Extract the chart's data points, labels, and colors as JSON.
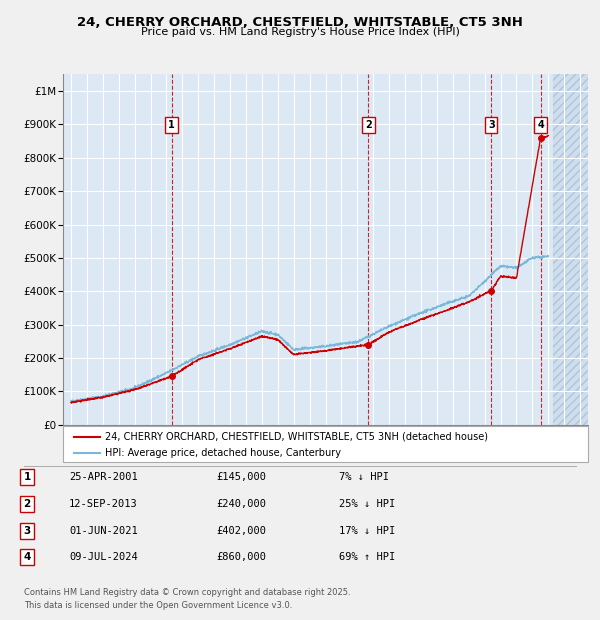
{
  "title": "24, CHERRY ORCHARD, CHESTFIELD, WHITSTABLE, CT5 3NH",
  "subtitle": "Price paid vs. HM Land Registry's House Price Index (HPI)",
  "ylabel_ticks": [
    "£0",
    "£100K",
    "£200K",
    "£300K",
    "£400K",
    "£500K",
    "£600K",
    "£700K",
    "£800K",
    "£900K",
    "£1M"
  ],
  "ytick_values": [
    0,
    100000,
    200000,
    300000,
    400000,
    500000,
    600000,
    700000,
    800000,
    900000,
    1000000
  ],
  "xmin": 1994.5,
  "xmax": 2027.5,
  "ymin": 0,
  "ymax": 1050000,
  "fig_bg_color": "#f0f0f0",
  "plot_bg_color": "#dce9f5",
  "grid_color": "#ffffff",
  "hpi_color": "#7ab8d9",
  "price_color": "#cc0000",
  "legend_label_house": "24, CHERRY ORCHARD, CHESTFIELD, WHITSTABLE, CT5 3NH (detached house)",
  "legend_label_hpi": "HPI: Average price, detached house, Canterbury",
  "transactions": [
    {
      "id": 1,
      "date_str": "25-APR-2001",
      "price": 145000,
      "pct": "7%",
      "dir": "↓",
      "x": 2001.32
    },
    {
      "id": 2,
      "date_str": "12-SEP-2013",
      "price": 240000,
      "pct": "25%",
      "dir": "↓",
      "x": 2013.7
    },
    {
      "id": 3,
      "date_str": "01-JUN-2021",
      "price": 402000,
      "pct": "17%",
      "dir": "↓",
      "x": 2021.42
    },
    {
      "id": 4,
      "date_str": "09-JUL-2024",
      "price": 860000,
      "pct": "69%",
      "dir": "↑",
      "x": 2024.52
    }
  ],
  "footer_line1": "Contains HM Land Registry data © Crown copyright and database right 2025.",
  "footer_line2": "This data is licensed under the Open Government Licence v3.0.",
  "future_xmin": 2025.3,
  "future_xmax": 2027.5,
  "hpi_anchors_x": [
    1995,
    1997,
    1999,
    2001,
    2003,
    2005,
    2007,
    2008,
    2009,
    2011,
    2013,
    2015,
    2017,
    2019,
    2020,
    2021,
    2022,
    2023,
    2024,
    2025
  ],
  "hpi_anchors_y": [
    70000,
    85000,
    110000,
    155000,
    205000,
    240000,
    280000,
    270000,
    225000,
    235000,
    248000,
    295000,
    335000,
    370000,
    385000,
    430000,
    475000,
    470000,
    500000,
    505000
  ],
  "price_anchors_x": [
    1995,
    1997,
    1999,
    2001.32,
    2003,
    2005,
    2007,
    2008,
    2009,
    2011,
    2013.7,
    2015,
    2017,
    2019,
    2020,
    2021.42,
    2022,
    2023,
    2024.52,
    2025
  ],
  "price_anchors_y": [
    67000,
    82000,
    105000,
    145000,
    195000,
    228000,
    265000,
    255000,
    210000,
    222000,
    240000,
    278000,
    315000,
    350000,
    368000,
    402000,
    445000,
    440000,
    860000,
    865000
  ]
}
